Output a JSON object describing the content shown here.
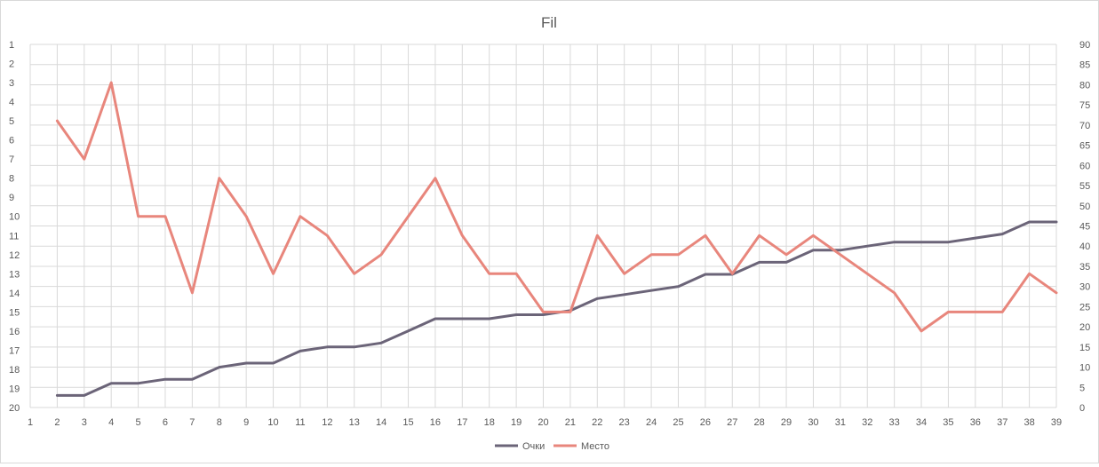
{
  "chart_data": {
    "type": "line",
    "title": "Fil",
    "xlabel": "",
    "ylabel_left": "",
    "ylabel_right": "",
    "x": [
      1,
      2,
      3,
      4,
      5,
      6,
      7,
      8,
      9,
      10,
      11,
      12,
      13,
      14,
      15,
      16,
      17,
      18,
      19,
      20,
      21,
      22,
      23,
      24,
      25,
      26,
      27,
      28,
      29,
      30,
      31,
      32,
      33,
      34,
      35,
      36,
      37,
      38,
      39
    ],
    "x_ticks": [
      "1",
      "2",
      "3",
      "4",
      "5",
      "6",
      "7",
      "8",
      "9",
      "10",
      "11",
      "12",
      "13",
      "14",
      "15",
      "16",
      "17",
      "18",
      "19",
      "20",
      "21",
      "22",
      "23",
      "24",
      "25",
      "26",
      "27",
      "28",
      "29",
      "30",
      "31",
      "32",
      "33",
      "34",
      "35",
      "36",
      "37",
      "38",
      "39"
    ],
    "left_axis": {
      "min": 1,
      "max": 20,
      "reversed": true,
      "ticks": [
        "1",
        "2",
        "3",
        "4",
        "5",
        "6",
        "7",
        "8",
        "9",
        "10",
        "11",
        "12",
        "13",
        "14",
        "15",
        "16",
        "17",
        "18",
        "19",
        "20"
      ]
    },
    "right_axis": {
      "min": 0,
      "max": 90,
      "ticks": [
        "0",
        "5",
        "10",
        "15",
        "20",
        "25",
        "30",
        "35",
        "40",
        "45",
        "50",
        "55",
        "60",
        "65",
        "70",
        "75",
        "80",
        "85",
        "90"
      ]
    },
    "grid": true,
    "legend_position": "bottom",
    "series": [
      {
        "name": "Очки",
        "axis": "right",
        "color": "#6b6478",
        "x": [
          2,
          3,
          4,
          5,
          6,
          7,
          8,
          9,
          10,
          11,
          12,
          13,
          14,
          15,
          16,
          17,
          18,
          19,
          20,
          21,
          22,
          23,
          24,
          25,
          26,
          27,
          28,
          29,
          30,
          31,
          32,
          33,
          34,
          35,
          36,
          37,
          38,
          39
        ],
        "values": [
          3,
          3,
          6,
          6,
          7,
          7,
          10,
          11,
          11,
          14,
          15,
          15,
          16,
          19,
          22,
          22,
          22,
          23,
          23,
          24,
          27,
          28,
          29,
          30,
          33,
          33,
          36,
          36,
          39,
          39,
          40,
          41,
          41,
          41,
          42,
          43,
          46,
          46
        ]
      },
      {
        "name": "Место",
        "axis": "left",
        "color": "#e8867c",
        "x": [
          2,
          3,
          4,
          5,
          6,
          7,
          8,
          9,
          10,
          11,
          12,
          13,
          14,
          15,
          16,
          17,
          18,
          19,
          20,
          21,
          22,
          23,
          24,
          25,
          26,
          27,
          28,
          29,
          30,
          31,
          32,
          33,
          34,
          35,
          36,
          37,
          38,
          39
        ],
        "values": [
          5,
          7,
          3,
          10,
          10,
          14,
          8,
          10,
          13,
          10,
          11,
          13,
          12,
          10,
          8,
          11,
          13,
          13,
          15,
          15,
          11,
          13,
          12,
          12,
          11,
          13,
          11,
          12,
          11,
          12,
          13,
          14,
          16,
          15,
          15,
          15,
          13,
          14
        ]
      }
    ]
  }
}
